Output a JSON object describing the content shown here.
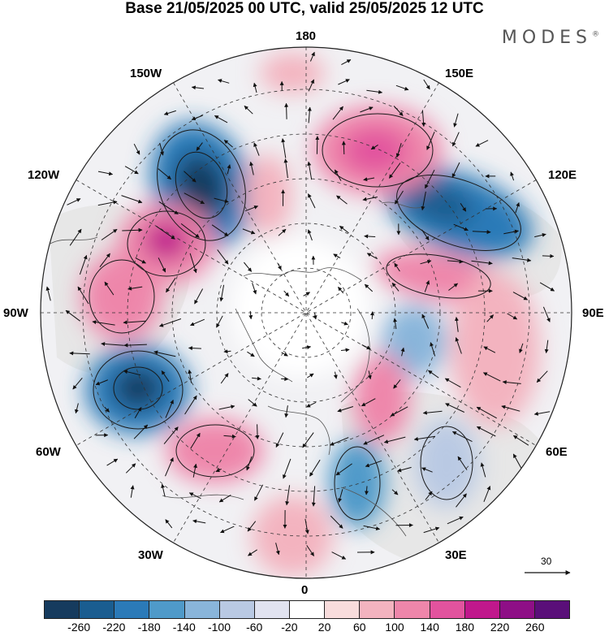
{
  "header": {
    "title": "Base 21/05/2025 00 UTC, valid 25/05/2025 12 UTC",
    "brand": "MODES",
    "brand_mark": "®"
  },
  "longitude_labels": {
    "top": "180",
    "bottom": "0",
    "left": "90W",
    "right": "90E",
    "w150": "150W",
    "e150": "150E",
    "w120": "120W",
    "e120": "120E",
    "w60": "60W",
    "e60": "60E",
    "w30": "30W",
    "e30": "30E"
  },
  "colorbar": {
    "ticks": [
      "-260",
      "-220",
      "-180",
      "-140",
      "-100",
      "-60",
      "-20",
      "20",
      "60",
      "100",
      "140",
      "180",
      "220",
      "260"
    ],
    "colors": [
      "#163b5e",
      "#1a5d90",
      "#2b7ab8",
      "#4f9ac9",
      "#89b5da",
      "#b9c9e3",
      "#e1e3f0",
      "#ffffff",
      "#f8dcdc",
      "#f3b3bf",
      "#ee86aa",
      "#e2539e",
      "#c0188c",
      "#8e0f86",
      "#5a0f79"
    ]
  },
  "reference_vector": {
    "value": "30"
  },
  "colors": {
    "land": "#e8e8e8",
    "coast": "#555555",
    "grid": "#333333"
  }
}
